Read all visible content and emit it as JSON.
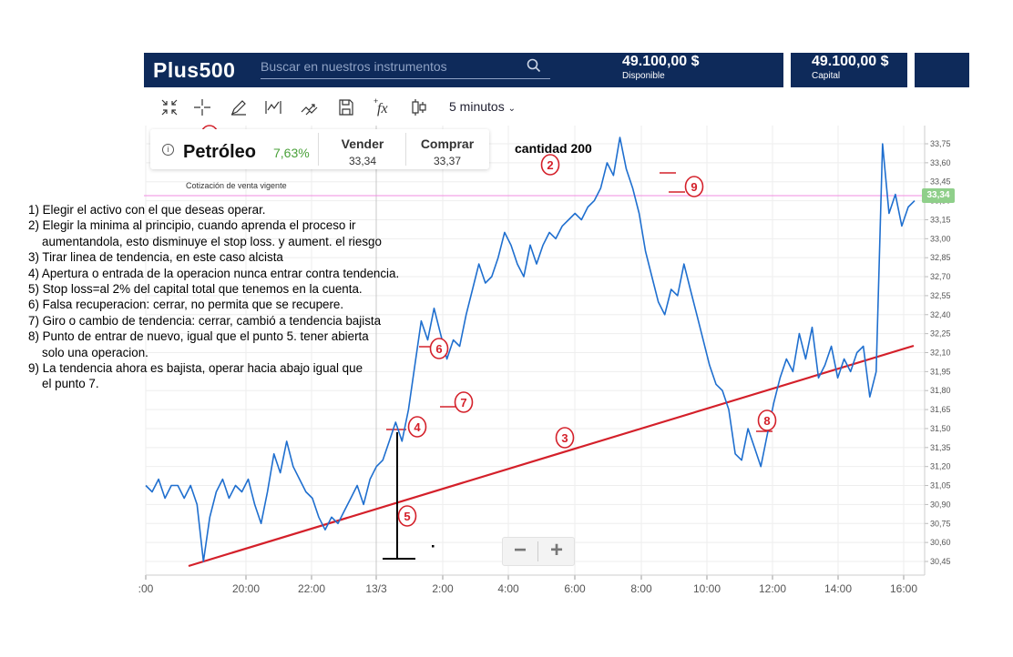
{
  "header": {
    "logo": "Plus500",
    "search_placeholder": "Buscar en nuestros instrumentos",
    "available_amount": "49.100,00 $",
    "available_label": "Disponible",
    "capital_amount": "49.100,00 $",
    "capital_label": "Capital"
  },
  "toolbar": {
    "icons": [
      "collapse-icon",
      "crosshair-icon",
      "pencil-icon",
      "indicator-icon",
      "trend-icon",
      "save-icon",
      "function-icon",
      "candlestick-icon"
    ],
    "interval": "5 minutos"
  },
  "instrument": {
    "name": "Petróleo",
    "change": "7,63%",
    "sell_label": "Vender",
    "sell_price": "33,34",
    "buy_label": "Comprar",
    "buy_price": "33,37",
    "caption": "Cotización de venta vigente"
  },
  "annotations": {
    "quantity": "cantidad 200",
    "markers": [
      "1",
      "2",
      "3",
      "4",
      "5",
      "6",
      "7",
      "8",
      "9"
    ],
    "notes": [
      "1) Elegir el activo con el que deseas operar.",
      "2) Elegir la minima al principio, cuando aprenda el proceso ir",
      "aumentandola, esto disminuye el stop loss. y aument. el riesgo",
      "3) Tirar linea de tendencia, en este caso alcista",
      "4) Apertura o entrada de la operacion nunca entrar contra tendencia.",
      "5) Stop loss=al 2% del capital total que tenemos en la cuenta.",
      "6) Falsa recuperacion: cerrar, no permita que se recupere.",
      "7) Giro o cambio de tendencia: cerrar, cambió a tendencia bajista",
      "8) Punto de entrar de nuevo, igual que el punto 5. tener abierta",
      "solo una operacion.",
      "9) La tendencia ahora es bajista, operar hacia abajo igual que",
      "el punto 7."
    ]
  },
  "chart_data": {
    "type": "line",
    "current_price": "33,34",
    "y_ticks": [
      "33,75",
      "33,60",
      "33,45",
      "33,30",
      "33,15",
      "33,00",
      "32,85",
      "32,70",
      "32,55",
      "32,40",
      "32,25",
      "32,10",
      "31,95",
      "31,80",
      "31,65",
      "31,50",
      "31,35",
      "31,20",
      "31,05",
      "30,90",
      "30,75",
      "30,60",
      "30,45"
    ],
    "x_ticks": [
      ":00",
      "20:00",
      "22:00",
      "13/3",
      "2:00",
      "4:00",
      "6:00",
      "8:00",
      "10:00",
      "12:00",
      "14:00",
      "16:00"
    ],
    "colors": {
      "line": "#1f6fcf",
      "trend": "#d4202a",
      "price_line": "#f08ce0",
      "tag": "#8fcf8a"
    },
    "series": [
      {
        "values": [
          31.05,
          31.0,
          31.1,
          30.95,
          31.05,
          31.05,
          30.95,
          31.05,
          30.9,
          30.45,
          30.8,
          31.0,
          31.1,
          30.95,
          31.05,
          31.0,
          31.1,
          30.9,
          30.75,
          31.0,
          31.3,
          31.15,
          31.4,
          31.2,
          31.1,
          31.0,
          30.95,
          30.8,
          30.7,
          30.8,
          30.75,
          30.85,
          30.95,
          31.05,
          30.9,
          31.1,
          31.2,
          31.25,
          31.4,
          31.55,
          31.4,
          31.65,
          32.0,
          32.35,
          32.2,
          32.45,
          32.25,
          32.05,
          32.2,
          32.15,
          32.4,
          32.6,
          32.8,
          32.65,
          32.7,
          32.85,
          33.05,
          32.95,
          32.8,
          32.7,
          32.95,
          32.8,
          32.95,
          33.05,
          33.0,
          33.1,
          33.15,
          33.2,
          33.15,
          33.25,
          33.3,
          33.4,
          33.6,
          33.5,
          33.8,
          33.55,
          33.4,
          33.2,
          32.9,
          32.7,
          32.5,
          32.4,
          32.6,
          32.55,
          32.8,
          32.6,
          32.4,
          32.2,
          32.0,
          31.85,
          31.8,
          31.65,
          31.3,
          31.25,
          31.5,
          31.35,
          31.2,
          31.45,
          31.7,
          31.9,
          32.05,
          31.95,
          32.25,
          32.05,
          32.3,
          31.9,
          32.0,
          32.15,
          31.9,
          32.05,
          31.95,
          32.1,
          32.15,
          31.75,
          31.95,
          33.75,
          33.2,
          33.35,
          33.1,
          33.25,
          33.3
        ]
      }
    ]
  }
}
